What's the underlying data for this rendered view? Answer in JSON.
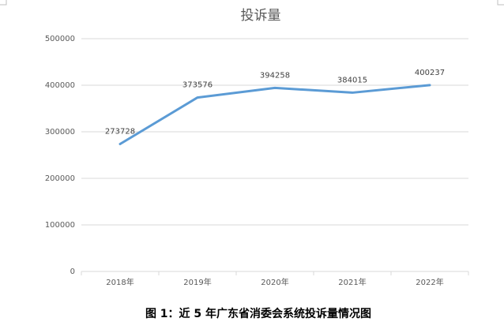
{
  "chart_data": {
    "type": "line",
    "title": "投诉量",
    "categories": [
      "2018年",
      "2019年",
      "2020年",
      "2021年",
      "2022年"
    ],
    "series": [
      {
        "name": "投诉量",
        "color": "#5b9bd5",
        "values": [
          273728,
          373576,
          394258,
          384015,
          400237
        ]
      }
    ],
    "ylim": [
      0,
      500000
    ],
    "yticks": [
      0,
      100000,
      200000,
      300000,
      400000,
      500000
    ],
    "grid": true,
    "caption": "图 1：近 5 年广东省消委会系统投诉量情况图"
  }
}
